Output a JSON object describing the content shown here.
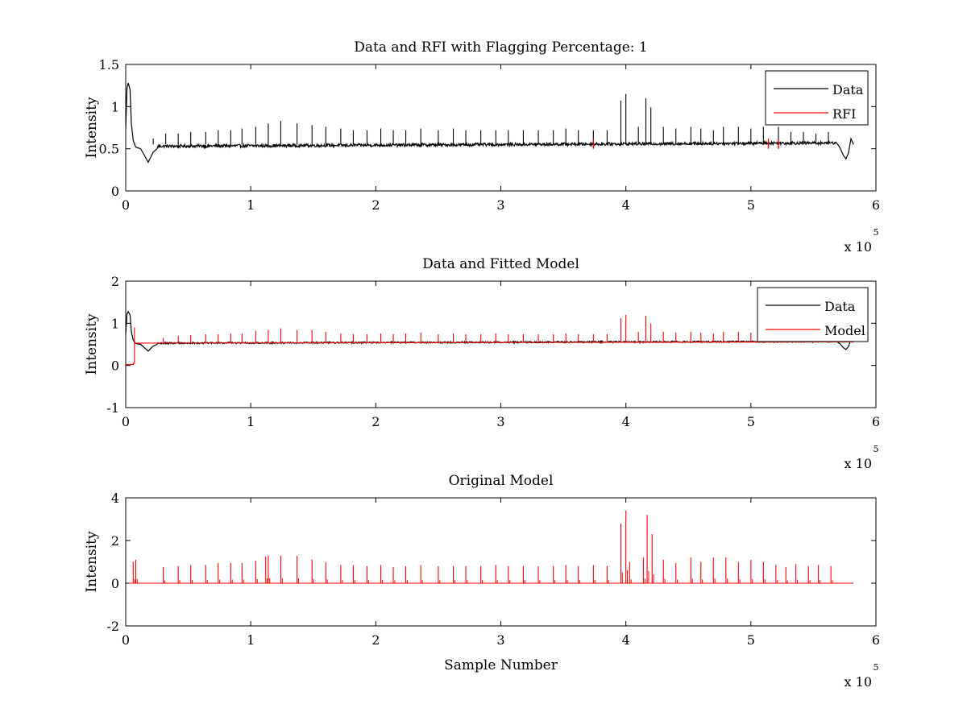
{
  "chart_data": [
    {
      "type": "line",
      "title": "Data and RFI with Flagging Percentage: 1",
      "xlabel": "",
      "ylabel": "Intensity",
      "xlim": [
        0,
        6
      ],
      "ylim": [
        0,
        1.5
      ],
      "x_ticks": [
        "0",
        "1",
        "2",
        "3",
        "4",
        "5",
        "6"
      ],
      "y_ticks": [
        "0",
        "0.5",
        "1",
        "1.5"
      ],
      "x_multiplier": {
        "base": "x 10",
        "exponent": "5"
      },
      "legend": {
        "position": "top-right",
        "entries": [
          {
            "label": "Data",
            "color": "#000000"
          },
          {
            "label": "RFI",
            "color": "#ff0000"
          }
        ]
      },
      "series": [
        {
          "name": "Data",
          "color": "#000000",
          "baseline": 0.53,
          "x_end": 5.82
        },
        {
          "name": "RFI",
          "color": "#ff0000",
          "spikes_x": [
            3.74,
            5.14,
            5.22
          ]
        }
      ],
      "spikes": [
        [
          0.12,
          0.55
        ],
        [
          0.22,
          0.62
        ],
        [
          0.32,
          0.68
        ],
        [
          0.42,
          0.68
        ],
        [
          0.52,
          0.7
        ],
        [
          0.64,
          0.7
        ],
        [
          0.74,
          0.72
        ],
        [
          0.84,
          0.72
        ],
        [
          0.93,
          0.74
        ],
        [
          1.04,
          0.76
        ],
        [
          1.14,
          0.8
        ],
        [
          1.24,
          0.83
        ],
        [
          1.37,
          0.8
        ],
        [
          1.49,
          0.78
        ],
        [
          1.6,
          0.76
        ],
        [
          1.72,
          0.74
        ],
        [
          1.82,
          0.72
        ],
        [
          1.93,
          0.72
        ],
        [
          2.04,
          0.74
        ],
        [
          2.14,
          0.72
        ],
        [
          2.24,
          0.72
        ],
        [
          2.36,
          0.74
        ],
        [
          2.5,
          0.72
        ],
        [
          2.62,
          0.74
        ],
        [
          2.72,
          0.72
        ],
        [
          2.84,
          0.72
        ],
        [
          2.96,
          0.72
        ],
        [
          3.06,
          0.72
        ],
        [
          3.18,
          0.72
        ],
        [
          3.3,
          0.72
        ],
        [
          3.42,
          0.72
        ],
        [
          3.52,
          0.74
        ],
        [
          3.62,
          0.72
        ],
        [
          3.74,
          0.72
        ],
        [
          3.85,
          0.72
        ],
        [
          3.96,
          1.07
        ],
        [
          4.0,
          1.15
        ],
        [
          4.1,
          0.76
        ],
        [
          4.16,
          1.1
        ],
        [
          4.2,
          0.99
        ],
        [
          4.3,
          0.76
        ],
        [
          4.4,
          0.74
        ],
        [
          4.52,
          0.76
        ],
        [
          4.6,
          0.74
        ],
        [
          4.7,
          0.72
        ],
        [
          4.78,
          0.76
        ],
        [
          4.9,
          0.76
        ],
        [
          5.0,
          0.74
        ],
        [
          5.1,
          0.76
        ],
        [
          5.22,
          0.76
        ],
        [
          5.32,
          0.7
        ],
        [
          5.42,
          0.7
        ],
        [
          5.52,
          0.68
        ],
        [
          5.62,
          0.7
        ]
      ]
    },
    {
      "type": "line",
      "title": "Data and Fitted Model",
      "xlabel": "",
      "ylabel": "Intensity",
      "xlim": [
        0,
        6
      ],
      "ylim": [
        -1,
        2
      ],
      "x_ticks": [
        "0",
        "1",
        "2",
        "3",
        "4",
        "5",
        "6"
      ],
      "y_ticks": [
        "-1",
        "0",
        "1",
        "2"
      ],
      "x_multiplier": {
        "base": "x 10",
        "exponent": "5"
      },
      "legend": {
        "position": "top-right",
        "entries": [
          {
            "label": "Data",
            "color": "#000000"
          },
          {
            "label": "Model",
            "color": "#ff0000"
          }
        ]
      },
      "series": [
        {
          "name": "Data",
          "color": "#000000",
          "baseline": 0.53,
          "x_end": 5.82
        },
        {
          "name": "Model",
          "color": "#ff0000",
          "baseline": 0.53,
          "x_end": 5.82
        }
      ],
      "spikes": [
        [
          0.07,
          0.9
        ],
        [
          0.3,
          0.65
        ],
        [
          0.42,
          0.7
        ],
        [
          0.52,
          0.72
        ],
        [
          0.64,
          0.74
        ],
        [
          0.74,
          0.74
        ],
        [
          0.84,
          0.76
        ],
        [
          0.93,
          0.76
        ],
        [
          1.04,
          0.82
        ],
        [
          1.14,
          0.84
        ],
        [
          1.24,
          0.88
        ],
        [
          1.37,
          0.84
        ],
        [
          1.49,
          0.84
        ],
        [
          1.6,
          0.8
        ],
        [
          1.72,
          0.76
        ],
        [
          1.82,
          0.74
        ],
        [
          1.93,
          0.74
        ],
        [
          2.04,
          0.76
        ],
        [
          2.14,
          0.74
        ],
        [
          2.24,
          0.76
        ],
        [
          2.36,
          0.78
        ],
        [
          2.5,
          0.74
        ],
        [
          2.62,
          0.76
        ],
        [
          2.72,
          0.74
        ],
        [
          2.84,
          0.74
        ],
        [
          2.96,
          0.76
        ],
        [
          3.06,
          0.74
        ],
        [
          3.18,
          0.74
        ],
        [
          3.3,
          0.74
        ],
        [
          3.42,
          0.74
        ],
        [
          3.52,
          0.76
        ],
        [
          3.62,
          0.74
        ],
        [
          3.74,
          0.74
        ],
        [
          3.85,
          0.74
        ],
        [
          3.96,
          1.12
        ],
        [
          4.0,
          1.2
        ],
        [
          4.1,
          0.8
        ],
        [
          4.16,
          1.18
        ],
        [
          4.2,
          1.0
        ],
        [
          4.3,
          0.8
        ],
        [
          4.4,
          0.78
        ],
        [
          4.52,
          0.8
        ],
        [
          4.6,
          0.78
        ],
        [
          4.7,
          0.76
        ],
        [
          4.78,
          0.8
        ],
        [
          4.9,
          0.8
        ],
        [
          5.0,
          0.78
        ],
        [
          5.1,
          0.8
        ],
        [
          5.22,
          0.8
        ],
        [
          5.32,
          0.74
        ],
        [
          5.42,
          0.74
        ],
        [
          5.52,
          0.72
        ],
        [
          5.62,
          0.74
        ]
      ]
    },
    {
      "type": "line",
      "title": "Original Model",
      "xlabel": "Sample Number",
      "ylabel": "Intensity",
      "xlim": [
        0,
        6
      ],
      "ylim": [
        -2,
        4
      ],
      "x_ticks": [
        "0",
        "1",
        "2",
        "3",
        "4",
        "5",
        "6"
      ],
      "y_ticks": [
        "-2",
        "0",
        "2",
        "4"
      ],
      "x_multiplier": {
        "base": "x 10",
        "exponent": "5"
      },
      "series": [
        {
          "name": "Original Model",
          "color": "#ff0000",
          "baseline": 0,
          "x_start": 0.03,
          "x_end": 5.82
        }
      ],
      "spikes": [
        [
          0.06,
          1.0
        ],
        [
          0.08,
          1.1
        ],
        [
          0.3,
          0.75
        ],
        [
          0.42,
          0.8
        ],
        [
          0.52,
          0.85
        ],
        [
          0.64,
          0.85
        ],
        [
          0.74,
          0.95
        ],
        [
          0.84,
          0.95
        ],
        [
          0.93,
          0.95
        ],
        [
          1.04,
          1.05
        ],
        [
          1.12,
          1.25
        ],
        [
          1.14,
          1.3
        ],
        [
          1.24,
          1.3
        ],
        [
          1.37,
          1.28
        ],
        [
          1.49,
          1.1
        ],
        [
          1.6,
          1.0
        ],
        [
          1.72,
          0.85
        ],
        [
          1.82,
          0.85
        ],
        [
          1.93,
          0.8
        ],
        [
          2.04,
          0.85
        ],
        [
          2.14,
          0.75
        ],
        [
          2.24,
          0.8
        ],
        [
          2.36,
          0.85
        ],
        [
          2.5,
          0.8
        ],
        [
          2.62,
          0.8
        ],
        [
          2.72,
          0.8
        ],
        [
          2.84,
          0.8
        ],
        [
          2.96,
          0.85
        ],
        [
          3.06,
          0.8
        ],
        [
          3.18,
          0.8
        ],
        [
          3.3,
          0.8
        ],
        [
          3.42,
          0.8
        ],
        [
          3.52,
          0.85
        ],
        [
          3.62,
          0.8
        ],
        [
          3.74,
          0.85
        ],
        [
          3.85,
          0.8
        ],
        [
          3.96,
          2.8
        ],
        [
          4.0,
          3.4
        ],
        [
          4.03,
          1.0
        ],
        [
          4.14,
          1.2
        ],
        [
          4.17,
          3.2
        ],
        [
          4.21,
          2.3
        ],
        [
          4.3,
          1.1
        ],
        [
          4.4,
          0.95
        ],
        [
          4.52,
          1.2
        ],
        [
          4.6,
          1.0
        ],
        [
          4.7,
          1.2
        ],
        [
          4.8,
          1.2
        ],
        [
          4.9,
          1.0
        ],
        [
          5.0,
          1.1
        ],
        [
          5.1,
          1.0
        ],
        [
          5.2,
          0.85
        ],
        [
          5.28,
          0.75
        ],
        [
          5.36,
          0.9
        ],
        [
          5.46,
          0.8
        ],
        [
          5.54,
          0.85
        ],
        [
          5.64,
          0.8
        ]
      ]
    }
  ]
}
